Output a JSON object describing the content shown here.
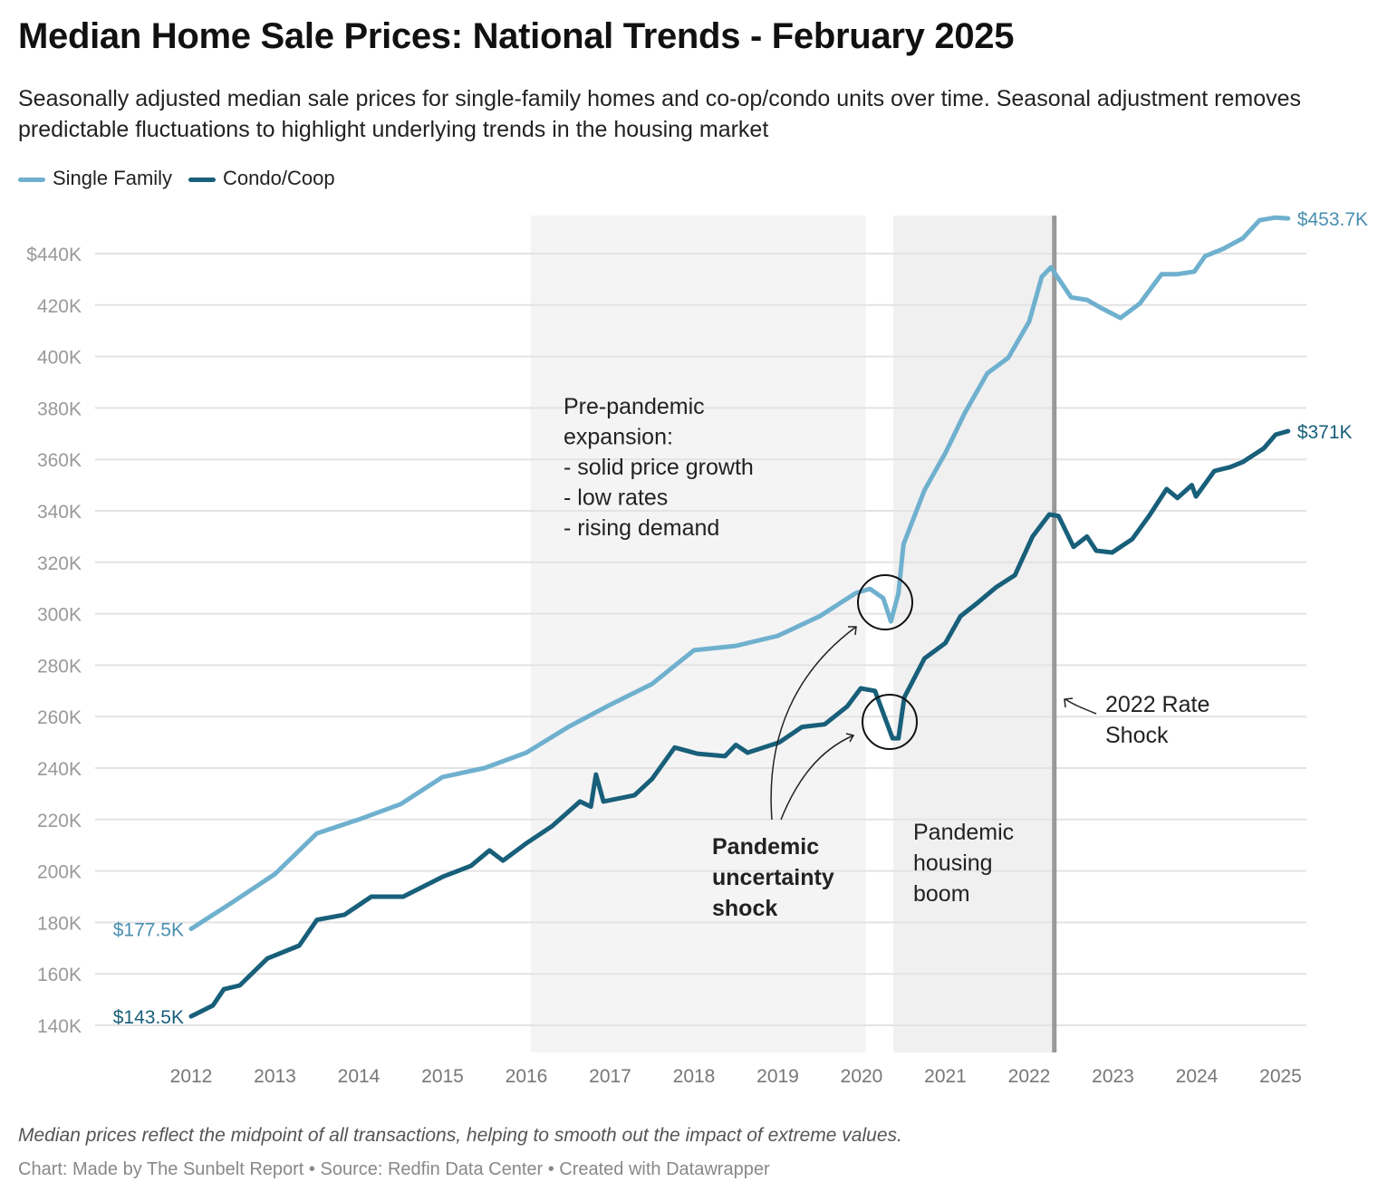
{
  "title": "Median Home Sale Prices: National Trends - February 2025",
  "subtitle": "Seasonally adjusted median sale prices for single-family homes and co-op/condo units over time. Seasonal adjustment removes predictable fluctuations to highlight underlying trends in the housing market",
  "footnote": "Median prices reflect the midpoint of all transactions, helping to smooth out the impact of extreme values.",
  "credit": "Chart: Made by The Sunbelt Report • Source: Redfin Data Center • Created with Datawrapper",
  "colors": {
    "single_family": "#6fb0cf",
    "condo": "#185f7a",
    "shade": "#f3f3f3",
    "rate_line": "#999999"
  },
  "chart_data": {
    "type": "line",
    "title": "Median Home Sale Prices: National Trends - February 2025",
    "xlabel": "",
    "ylabel": "",
    "xlim": [
      2012,
      2025.1
    ],
    "ylim": [
      140,
      453.7
    ],
    "grid": true,
    "legend_position": "top-left",
    "x_ticks": [
      "2012",
      "2013",
      "2014",
      "2015",
      "2016",
      "2017",
      "2018",
      "2019",
      "2020",
      "2021",
      "2022",
      "2023",
      "2024",
      "2025"
    ],
    "y_ticks": [
      {
        "v": 140,
        "label": "140K"
      },
      {
        "v": 160,
        "label": "160K"
      },
      {
        "v": 180,
        "label": "180K"
      },
      {
        "v": 200,
        "label": "200K"
      },
      {
        "v": 220,
        "label": "220K"
      },
      {
        "v": 240,
        "label": "240K"
      },
      {
        "v": 260,
        "label": "260K"
      },
      {
        "v": 280,
        "label": "280K"
      },
      {
        "v": 300,
        "label": "300K"
      },
      {
        "v": 320,
        "label": "320K"
      },
      {
        "v": 340,
        "label": "340K"
      },
      {
        "v": 360,
        "label": "360K"
      },
      {
        "v": 380,
        "label": "380K"
      },
      {
        "v": 400,
        "label": "400K"
      },
      {
        "v": 420,
        "label": "420K"
      },
      {
        "v": 440,
        "label": "$440K"
      }
    ],
    "series": [
      {
        "name": "Single Family",
        "start_label": "$177.5K",
        "end_label": "$453.7K",
        "x": [
          2012.0,
          2012.5,
          2013.0,
          2013.5,
          2014.0,
          2014.5,
          2015.0,
          2015.5,
          2016.0,
          2016.5,
          2017.0,
          2017.5,
          2018.0,
          2018.5,
          2019.0,
          2019.5,
          2019.93,
          2020.1,
          2020.26,
          2020.35,
          2020.44,
          2020.5,
          2020.75,
          2021.0,
          2021.23,
          2021.5,
          2021.75,
          2022.0,
          2022.15,
          2022.26,
          2022.5,
          2022.69,
          2022.85,
          2023.09,
          2023.32,
          2023.58,
          2023.77,
          2023.97,
          2024.1,
          2024.31,
          2024.55,
          2024.75,
          2024.94,
          2025.09
        ],
        "values": [
          177.5,
          188,
          198.8,
          214.6,
          220,
          226,
          236.5,
          240,
          246,
          256,
          264.6,
          272.7,
          285.8,
          287.5,
          291.4,
          299,
          308,
          309.7,
          306,
          297,
          308,
          327,
          348,
          362.5,
          378,
          393.5,
          399.5,
          413.6,
          431,
          434.7,
          423,
          422,
          419,
          415,
          420.6,
          432,
          432,
          433,
          439,
          441.8,
          446,
          453,
          454,
          453.7
        ]
      },
      {
        "name": "Condo/Coop",
        "start_label": "$143.5K",
        "end_label": "$371K",
        "x": [
          2012.0,
          2012.26,
          2012.39,
          2012.58,
          2012.91,
          2013.29,
          2013.5,
          2013.83,
          2014.15,
          2014.53,
          2015.0,
          2015.34,
          2015.56,
          2015.72,
          2016.01,
          2016.31,
          2016.64,
          2016.77,
          2016.83,
          2016.92,
          2017.29,
          2017.5,
          2017.77,
          2018.04,
          2018.37,
          2018.5,
          2018.64,
          2019.02,
          2019.29,
          2019.56,
          2019.83,
          2019.99,
          2020.16,
          2020.37,
          2020.44,
          2020.51,
          2020.75,
          2021.0,
          2021.18,
          2021.39,
          2021.61,
          2021.83,
          2022.04,
          2022.24,
          2022.35,
          2022.53,
          2022.69,
          2022.8,
          2022.99,
          2023.23,
          2023.43,
          2023.64,
          2023.77,
          2023.94,
          2023.99,
          2024.21,
          2024.4,
          2024.55,
          2024.8,
          2024.94,
          2025.09
        ],
        "values": [
          143.5,
          147.7,
          154,
          155.5,
          166,
          171,
          181,
          183,
          190,
          190,
          197.7,
          202,
          208,
          204,
          211,
          217.5,
          227,
          225,
          237.5,
          227,
          229.4,
          235.8,
          248,
          245.6,
          244.6,
          249,
          246,
          250,
          256,
          257,
          264,
          271,
          270,
          251.6,
          251.6,
          267.5,
          282.6,
          288.6,
          299,
          304.4,
          310.4,
          315,
          330,
          338.6,
          338,
          326,
          330,
          324.5,
          323.8,
          329,
          338,
          348.5,
          345,
          350,
          345.6,
          355.5,
          357,
          359,
          364.3,
          369.6,
          371
        ]
      }
    ],
    "shaded_ranges": [
      {
        "x": [
          2016.05,
          2020.05
        ]
      },
      {
        "x": [
          2020.38,
          2022.3
        ]
      }
    ],
    "vertical_line": 2022.3,
    "annotations": {
      "pre_pandemic": [
        "Pre-pandemic",
        "expansion:",
        "- solid price growth",
        "- low rates",
        "- rising demand"
      ],
      "shock": [
        "Pandemic",
        "uncertainty",
        "shock"
      ],
      "boom": [
        "Pandemic",
        "housing",
        "boom"
      ],
      "rate": [
        "2022 Rate",
        "Shock"
      ]
    }
  }
}
